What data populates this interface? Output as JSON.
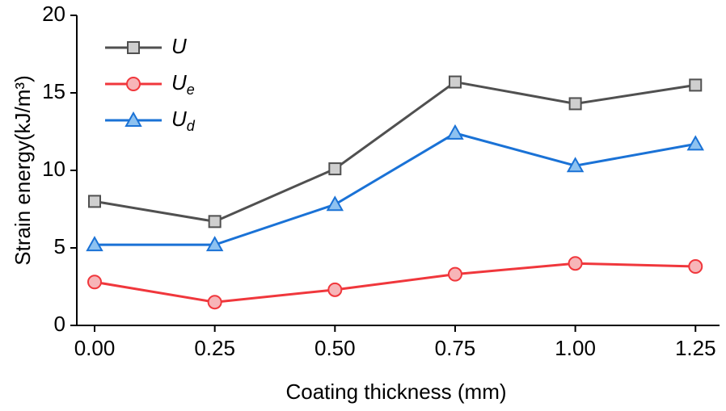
{
  "chart_data": {
    "type": "line",
    "x_label": "Coating thickness (mm)",
    "y_label": "Strain energy(kJ/m³)",
    "x": [
      0,
      0.25,
      0.5,
      0.75,
      1.0,
      1.25
    ],
    "series": [
      {
        "name": "U",
        "color": "#505050",
        "marker": "square",
        "marker_fill": "#cfcfcf",
        "values": [
          8.0,
          6.7,
          10.1,
          15.7,
          14.3,
          15.5
        ]
      },
      {
        "name": "Ue",
        "color": "#f0373c",
        "marker": "circle",
        "marker_fill": "#f7b5b8",
        "values": [
          2.8,
          1.5,
          2.3,
          3.3,
          4.0,
          3.8
        ]
      },
      {
        "name": "Ud",
        "color": "#1a72d6",
        "marker": "triangle",
        "marker_fill": "#8ec2f0",
        "values": [
          5.2,
          5.2,
          7.8,
          12.4,
          10.3,
          11.7
        ]
      }
    ],
    "xlim": [
      -0.037,
      1.3
    ],
    "ylim": [
      0,
      20
    ],
    "xticks": [
      {
        "value": 0,
        "label": "0.00"
      },
      {
        "value": 0.25,
        "label": "0.25"
      },
      {
        "value": 0.5,
        "label": "0.50"
      },
      {
        "value": 0.75,
        "label": "0.75"
      },
      {
        "value": 1.0,
        "label": "1.00"
      },
      {
        "value": 1.25,
        "label": "1.25"
      }
    ],
    "yticks": [
      0,
      5,
      10,
      15,
      20
    ],
    "legend": "upper left"
  }
}
